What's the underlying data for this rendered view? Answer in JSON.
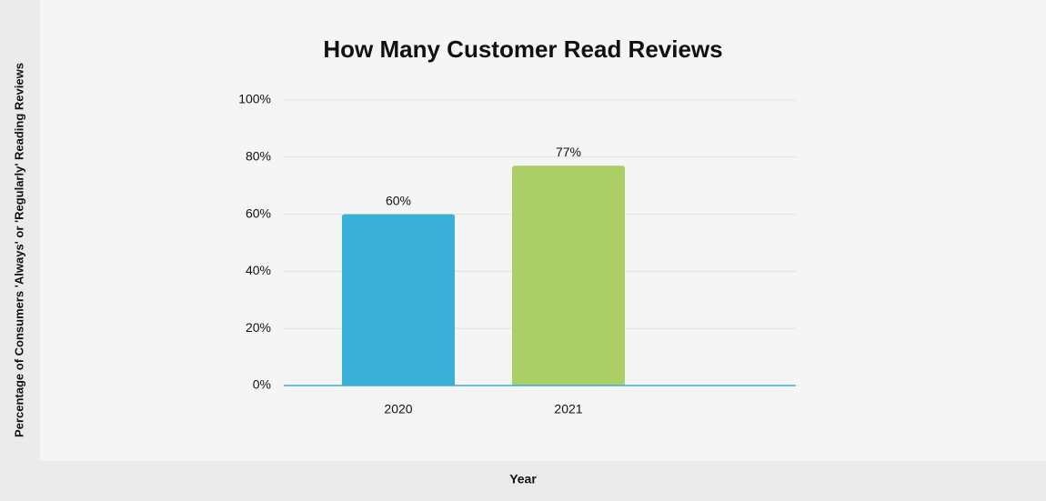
{
  "chart_data": {
    "type": "bar",
    "title": "How Many Customer Read Reviews",
    "x_label": "Year",
    "y_label": "Percentage of Consumers 'Always' or 'Regularly' Reading Reviews",
    "categories": [
      "2020",
      "2021"
    ],
    "values": [
      60,
      77
    ],
    "value_labels": [
      "60%",
      "77%"
    ],
    "colors": [
      "#3ab0d8",
      "#abcf66"
    ],
    "ylim": [
      0,
      100
    ],
    "yticks": [
      {
        "value": 0,
        "label": "0%"
      },
      {
        "value": 20,
        "label": "20%"
      },
      {
        "value": 40,
        "label": "40%"
      },
      {
        "value": 60,
        "label": "60%"
      },
      {
        "value": 80,
        "label": "80%"
      },
      {
        "value": 100,
        "label": "100%"
      }
    ],
    "grid": true
  }
}
